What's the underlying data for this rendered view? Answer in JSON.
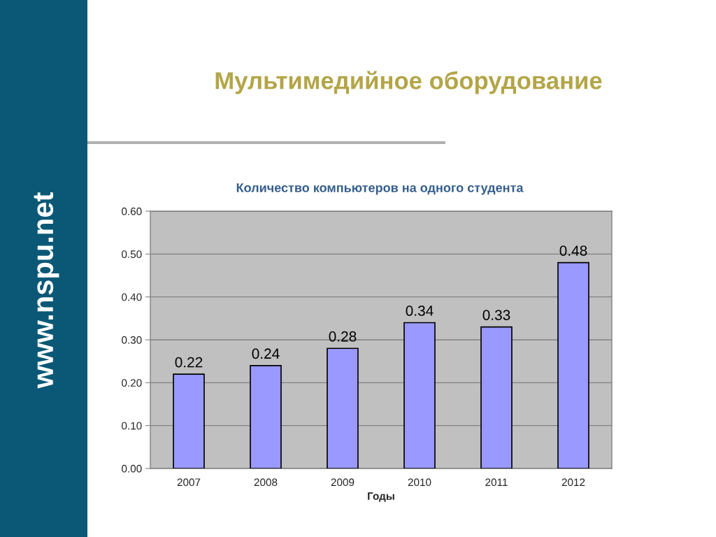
{
  "chart_data": {
    "type": "bar",
    "title": "Мультимедийное оборудование",
    "subtitle": "Количество компьютеров на одного студента",
    "xlabel": "Годы",
    "categories": [
      "2007",
      "2008",
      "2009",
      "2010",
      "2011",
      "2012"
    ],
    "values": [
      0.22,
      0.24,
      0.28,
      0.34,
      0.33,
      0.48
    ],
    "color": "#9999ff",
    "data_labels": true,
    "ylim": [
      0,
      0.6
    ],
    "yticks": [
      {
        "value": 0,
        "label": "0.00"
      },
      {
        "value": 0.1,
        "label": "0.10"
      },
      {
        "value": 0.2,
        "label": "0.20"
      },
      {
        "value": 0.3,
        "label": "0.30"
      },
      {
        "value": 0.4,
        "label": "0.40"
      },
      {
        "value": 0.5,
        "label": "0.50"
      },
      {
        "value": 0.6,
        "label": "0.60"
      }
    ],
    "grid": "y",
    "annotations": [
      "www.nspu.net"
    ]
  }
}
